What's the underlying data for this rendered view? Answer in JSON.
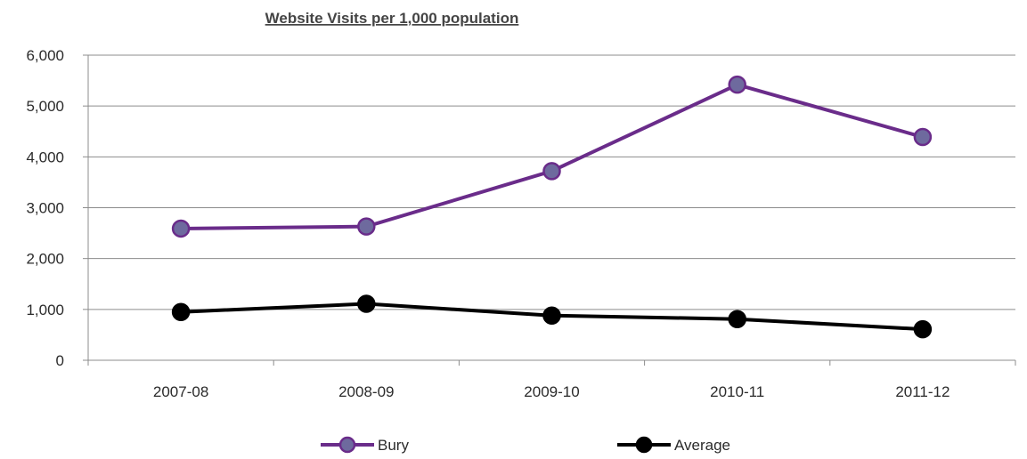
{
  "chart_data": {
    "type": "line",
    "title": "Website Visits per 1,000 population",
    "categories": [
      "2007-08",
      "2008-09",
      "2009-10",
      "2010-11",
      "2011-12"
    ],
    "series": [
      {
        "name": "Bury",
        "values": [
          2590,
          2630,
          3720,
          5420,
          4390
        ],
        "line_color": "#6a2c8a",
        "marker_fill": "#6e6a9e",
        "marker_stroke": "#6a2c8a"
      },
      {
        "name": "Average",
        "values": [
          950,
          1110,
          880,
          810,
          610
        ],
        "line_color": "#000000",
        "marker_fill": "#000000",
        "marker_stroke": "#000000"
      }
    ],
    "ylim": [
      0,
      6000
    ],
    "yticks": [
      0,
      1000,
      2000,
      3000,
      4000,
      5000,
      6000
    ],
    "ytick_labels": [
      "0",
      "1,000",
      "2,000",
      "3,000",
      "4,000",
      "5,000",
      "6,000"
    ],
    "grid": true,
    "legend_position": "bottom",
    "gridline_color": "#8c8c8c"
  }
}
